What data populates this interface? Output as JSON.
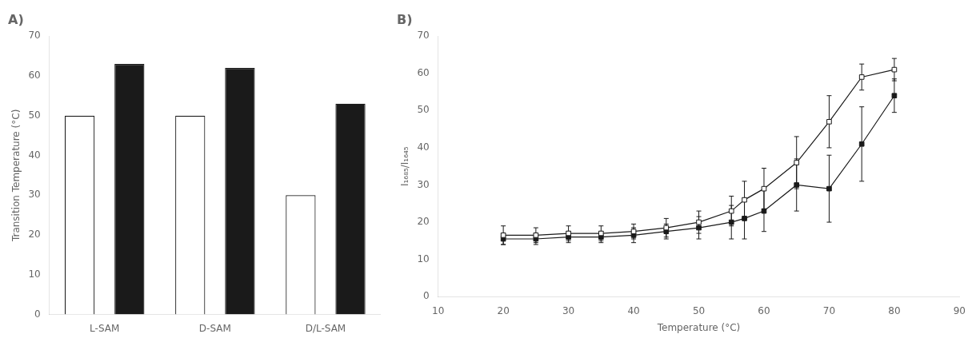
{
  "chart_data": [
    {
      "type": "bar",
      "title": "A)",
      "categories": [
        "L-SAM",
        "D-SAM",
        "D/L-SAM"
      ],
      "series": [
        {
          "color": "#ffffff",
          "values": [
            50,
            50,
            30
          ]
        },
        {
          "color": "#1a1a1a",
          "values": [
            63,
            62,
            53
          ]
        }
      ],
      "ylabel": "Transition Temperature (°C)",
      "ylim": [
        0,
        70
      ],
      "yticks": [
        0,
        10,
        20,
        30,
        40,
        50,
        60,
        70
      ],
      "grid": false
    },
    {
      "type": "line",
      "title": "B)",
      "x": [
        20,
        25,
        30,
        35,
        40,
        45,
        50,
        55,
        57,
        60,
        65,
        70,
        75,
        80
      ],
      "series": [
        {
          "color": "#1a1a1a",
          "marker": "square_open",
          "line_style": "solid",
          "values": [
            16.5,
            16.5,
            17,
            17,
            17.5,
            18.5,
            20,
            23,
            26,
            29,
            36,
            47,
            59,
            61
          ],
          "errors": [
            2.5,
            2.0,
            2.0,
            2.0,
            2.0,
            2.5,
            3.0,
            4.0,
            5.0,
            5.5,
            7.0,
            7.0,
            3.5,
            3.0
          ]
        },
        {
          "color": "#1a1a1a",
          "marker": "square",
          "line_style": "solid",
          "values": [
            15.5,
            15.5,
            16,
            16,
            16.5,
            17.5,
            18.5,
            20,
            21,
            23,
            30,
            29,
            41,
            54
          ],
          "errors": [
            1.5,
            1.5,
            1.5,
            1.5,
            2.0,
            2.0,
            3.0,
            4.5,
            5.5,
            5.5,
            7.0,
            9.0,
            10.0,
            4.5
          ]
        }
      ],
      "xlabel": "Temperature (°C)",
      "ylabel": "I₁₆₈₅/I₁₆₄₅",
      "xlim": [
        10,
        90
      ],
      "ylim": [
        0,
        70
      ],
      "xticks": [
        10,
        20,
        30,
        40,
        50,
        60,
        70,
        80,
        90
      ],
      "yticks": [
        0,
        10,
        20,
        30,
        40,
        50,
        60,
        70
      ],
      "grid": false
    }
  ]
}
